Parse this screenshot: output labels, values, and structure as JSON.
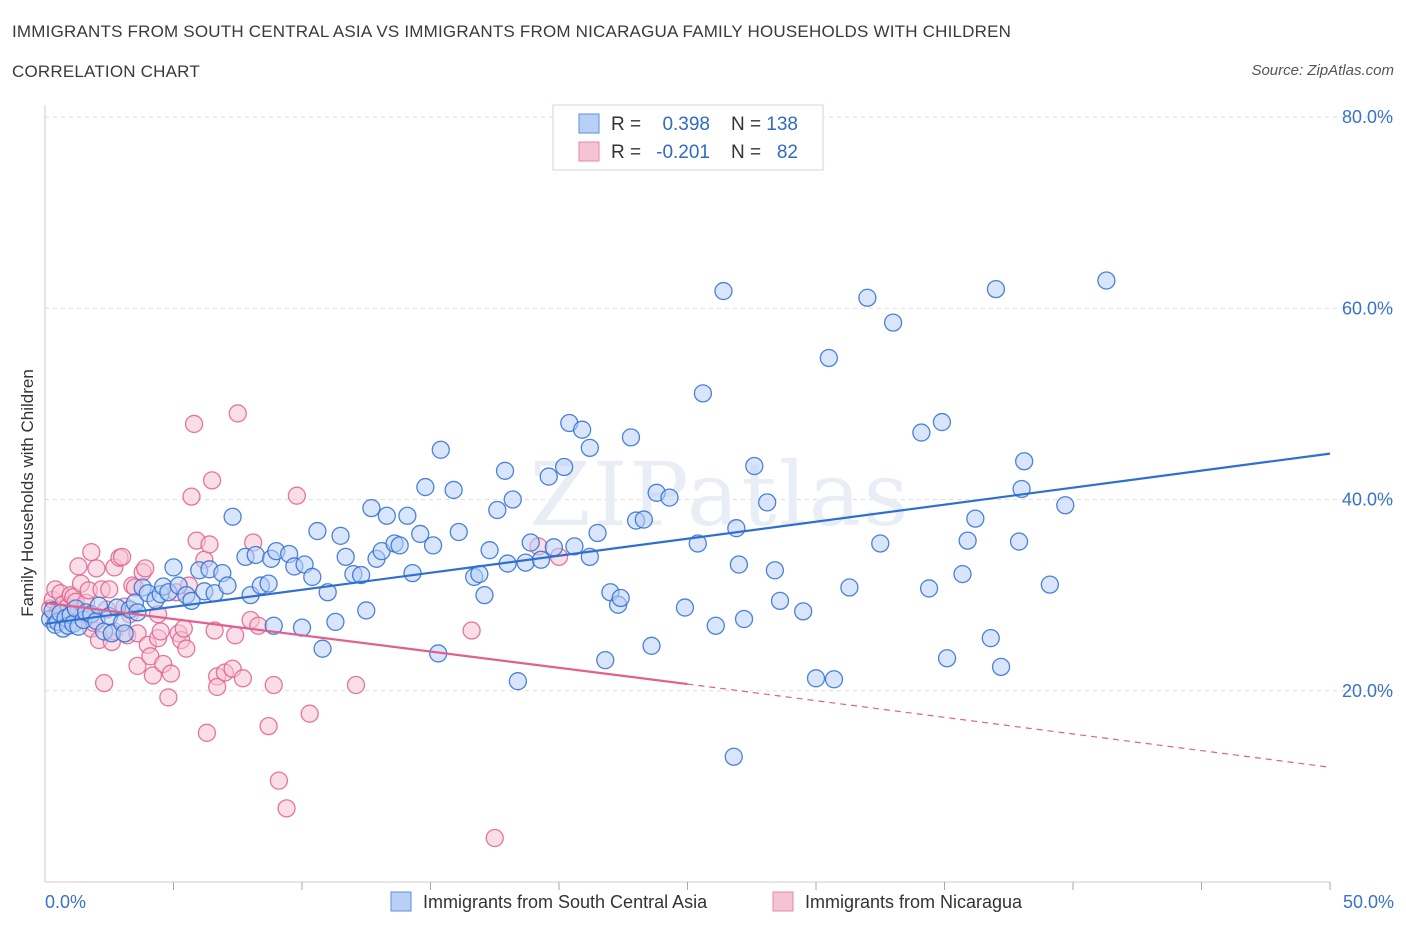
{
  "title": "IMMIGRANTS FROM SOUTH CENTRAL ASIA VS IMMIGRANTS FROM NICARAGUA FAMILY HOUSEHOLDS WITH CHILDREN",
  "subtitle": "CORRELATION CHART",
  "source": "Source: ZipAtlas.com",
  "watermark": "ZIPatlas",
  "colors": {
    "blue": "#2e6fd0",
    "blue_fill": "#b8d0f5",
    "pink": "#e0608f",
    "pink_fill": "#f6c3d4",
    "axis_text": "#3a72c8",
    "grid": "#dddddd"
  },
  "legend": {
    "rows": [
      {
        "r_label": "R =",
        "r_value": "0.398",
        "n_label": "N =",
        "n_value": "138"
      },
      {
        "r_label": "R =",
        "r_value": "-0.201",
        "n_label": "N =",
        "n_value": "82"
      }
    ]
  },
  "bottom_legend": [
    "Immigrants from South Central Asia",
    "Immigrants from Nicaragua"
  ],
  "chart_data": {
    "type": "scatter",
    "title": "IMMIGRANTS FROM SOUTH CENTRAL ASIA VS IMMIGRANTS FROM NICARAGUA FAMILY HOUSEHOLDS WITH CHILDREN",
    "xlabel": "",
    "ylabel": "Family Households with Children",
    "xlim": [
      0,
      50
    ],
    "ylim": [
      0,
      80
    ],
    "x_tick_labels": [
      "0.0%",
      "50.0%"
    ],
    "y_ticks": [
      20,
      40,
      60,
      80
    ],
    "y_tick_labels": [
      "20.0%",
      "40.0%",
      "60.0%",
      "80.0%"
    ],
    "grid": true,
    "series": [
      {
        "name": "Immigrants from South Central Asia",
        "color": "blue",
        "trend": {
          "x0": 0,
          "y0": 27.0,
          "x1": 50,
          "y1": 44.8
        },
        "points": [
          [
            0.2,
            27.5
          ],
          [
            0.3,
            28.4
          ],
          [
            0.4,
            26.9
          ],
          [
            0.5,
            27.2
          ],
          [
            0.6,
            28.1
          ],
          [
            0.7,
            26.5
          ],
          [
            0.8,
            27.6
          ],
          [
            0.9,
            26.8
          ],
          [
            1.0,
            27.9
          ],
          [
            1.1,
            27.0
          ],
          [
            1.2,
            28.6
          ],
          [
            1.3,
            26.7
          ],
          [
            1.5,
            27.4
          ],
          [
            1.6,
            28.2
          ],
          [
            1.8,
            28.0
          ],
          [
            2.0,
            27.3
          ],
          [
            2.1,
            28.9
          ],
          [
            2.3,
            26.2
          ],
          [
            2.5,
            27.8
          ],
          [
            2.6,
            26.0
          ],
          [
            2.8,
            28.7
          ],
          [
            3.0,
            27.1
          ],
          [
            3.1,
            26.0
          ],
          [
            3.3,
            28.5
          ],
          [
            3.5,
            29.2
          ],
          [
            3.6,
            28.2
          ],
          [
            3.8,
            30.8
          ],
          [
            4.0,
            30.2
          ],
          [
            4.3,
            29.5
          ],
          [
            4.5,
            30.1
          ],
          [
            4.6,
            30.9
          ],
          [
            4.8,
            30.3
          ],
          [
            5.0,
            32.9
          ],
          [
            5.2,
            31.0
          ],
          [
            5.5,
            30.0
          ],
          [
            5.7,
            29.4
          ],
          [
            6.0,
            32.6
          ],
          [
            6.2,
            30.4
          ],
          [
            6.4,
            32.7
          ],
          [
            6.6,
            30.2
          ],
          [
            6.9,
            32.3
          ],
          [
            7.1,
            31.0
          ],
          [
            7.3,
            38.2
          ],
          [
            7.8,
            34.0
          ],
          [
            8.0,
            30.0
          ],
          [
            8.2,
            34.2
          ],
          [
            8.4,
            31.0
          ],
          [
            8.7,
            31.2
          ],
          [
            8.8,
            33.8
          ],
          [
            9.0,
            34.6
          ],
          [
            8.9,
            26.8
          ],
          [
            9.5,
            34.3
          ],
          [
            9.7,
            33.0
          ],
          [
            10.0,
            26.6
          ],
          [
            10.1,
            33.2
          ],
          [
            10.4,
            31.9
          ],
          [
            10.6,
            36.7
          ],
          [
            10.8,
            24.4
          ],
          [
            11.0,
            30.3
          ],
          [
            11.3,
            27.2
          ],
          [
            11.5,
            36.2
          ],
          [
            11.7,
            34.0
          ],
          [
            12.0,
            32.2
          ],
          [
            12.3,
            32.1
          ],
          [
            12.5,
            28.4
          ],
          [
            12.7,
            39.1
          ],
          [
            12.9,
            33.8
          ],
          [
            13.1,
            34.6
          ],
          [
            13.3,
            38.3
          ],
          [
            13.6,
            35.4
          ],
          [
            13.8,
            35.2
          ],
          [
            14.1,
            38.3
          ],
          [
            14.3,
            32.3
          ],
          [
            14.8,
            41.3
          ],
          [
            14.6,
            36.4
          ],
          [
            15.1,
            35.2
          ],
          [
            15.3,
            23.9
          ],
          [
            15.4,
            45.2
          ],
          [
            15.9,
            41.0
          ],
          [
            16.1,
            36.6
          ],
          [
            16.7,
            31.9
          ],
          [
            16.9,
            32.2
          ],
          [
            17.1,
            30.0
          ],
          [
            17.3,
            34.7
          ],
          [
            17.6,
            38.9
          ],
          [
            17.9,
            43.0
          ],
          [
            18.0,
            33.3
          ],
          [
            18.2,
            40.0
          ],
          [
            18.4,
            21.0
          ],
          [
            18.7,
            33.4
          ],
          [
            18.9,
            35.5
          ],
          [
            19.3,
            33.7
          ],
          [
            19.6,
            42.4
          ],
          [
            19.8,
            35.0
          ],
          [
            20.2,
            43.4
          ],
          [
            20.4,
            48.0
          ],
          [
            20.6,
            35.1
          ],
          [
            20.9,
            47.3
          ],
          [
            21.2,
            45.4
          ],
          [
            21.2,
            34.0
          ],
          [
            21.5,
            36.5
          ],
          [
            21.8,
            23.2
          ],
          [
            22.0,
            30.3
          ],
          [
            22.3,
            29.0
          ],
          [
            22.4,
            29.7
          ],
          [
            22.8,
            46.5
          ],
          [
            23.0,
            37.8
          ],
          [
            23.3,
            37.9
          ],
          [
            23.6,
            24.7
          ],
          [
            23.8,
            40.7
          ],
          [
            24.3,
            40.2
          ],
          [
            24.9,
            28.7
          ],
          [
            25.4,
            35.4
          ],
          [
            25.6,
            51.1
          ],
          [
            26.1,
            26.8
          ],
          [
            26.4,
            61.8
          ],
          [
            26.9,
            37.0
          ],
          [
            27.0,
            33.2
          ],
          [
            27.2,
            27.5
          ],
          [
            27.6,
            43.5
          ],
          [
            28.1,
            39.7
          ],
          [
            28.4,
            32.6
          ],
          [
            28.6,
            29.4
          ],
          [
            29.5,
            28.3
          ],
          [
            30.0,
            21.3
          ],
          [
            30.5,
            54.8
          ],
          [
            30.7,
            21.2
          ],
          [
            31.3,
            30.8
          ],
          [
            32.0,
            61.1
          ],
          [
            32.5,
            35.4
          ],
          [
            33.0,
            58.5
          ],
          [
            34.1,
            47.0
          ],
          [
            34.4,
            30.7
          ],
          [
            34.9,
            48.1
          ],
          [
            35.1,
            23.4
          ],
          [
            35.7,
            32.2
          ],
          [
            35.9,
            35.7
          ],
          [
            36.2,
            38.0
          ],
          [
            36.8,
            25.5
          ],
          [
            37.0,
            62.0
          ],
          [
            37.2,
            22.5
          ],
          [
            37.9,
            35.6
          ],
          [
            38.0,
            41.1
          ],
          [
            38.1,
            44.0
          ],
          [
            39.1,
            31.1
          ],
          [
            39.7,
            39.4
          ],
          [
            41.3,
            62.9
          ],
          [
            26.8,
            13.1
          ]
        ]
      },
      {
        "name": "Immigrants from Nicaragua",
        "color": "pink",
        "trend": {
          "x0": 0,
          "y0": 29.2,
          "x1": 25,
          "y1": 20.7,
          "dash_x1": 50,
          "dash_y1": 12.0
        },
        "points": [
          [
            0.2,
            28.6
          ],
          [
            0.3,
            29.5
          ],
          [
            0.4,
            30.6
          ],
          [
            0.4,
            27.7
          ],
          [
            0.5,
            28.2
          ],
          [
            0.6,
            30.2
          ],
          [
            0.7,
            29.0
          ],
          [
            0.8,
            27.4
          ],
          [
            0.9,
            28.8
          ],
          [
            1.0,
            30.0
          ],
          [
            1.1,
            29.8
          ],
          [
            1.2,
            29.3
          ],
          [
            1.3,
            33.0
          ],
          [
            1.4,
            31.2
          ],
          [
            1.5,
            28.0
          ],
          [
            1.6,
            29.2
          ],
          [
            1.7,
            30.5
          ],
          [
            1.8,
            26.5
          ],
          [
            1.8,
            34.5
          ],
          [
            1.9,
            27.1
          ],
          [
            2.0,
            32.8
          ],
          [
            2.1,
            25.3
          ],
          [
            2.2,
            30.6
          ],
          [
            2.3,
            20.8
          ],
          [
            2.4,
            28.5
          ],
          [
            2.5,
            30.6
          ],
          [
            2.6,
            25.1
          ],
          [
            2.7,
            26.2
          ],
          [
            2.7,
            32.9
          ],
          [
            2.9,
            33.9
          ],
          [
            3.0,
            34.0
          ],
          [
            3.1,
            28.8
          ],
          [
            3.2,
            25.8
          ],
          [
            3.3,
            28.0
          ],
          [
            3.4,
            31.0
          ],
          [
            3.5,
            30.8
          ],
          [
            3.6,
            26.0
          ],
          [
            3.6,
            22.6
          ],
          [
            3.8,
            32.4
          ],
          [
            3.9,
            32.8
          ],
          [
            4.0,
            24.8
          ],
          [
            4.1,
            23.6
          ],
          [
            4.2,
            21.6
          ],
          [
            4.4,
            25.5
          ],
          [
            4.4,
            28.0
          ],
          [
            4.5,
            26.2
          ],
          [
            4.6,
            22.8
          ],
          [
            4.8,
            19.3
          ],
          [
            4.9,
            21.8
          ],
          [
            5.1,
            30.3
          ],
          [
            5.2,
            26.0
          ],
          [
            5.3,
            25.3
          ],
          [
            5.4,
            26.5
          ],
          [
            5.5,
            24.4
          ],
          [
            5.6,
            31.0
          ],
          [
            5.7,
            40.3
          ],
          [
            5.8,
            47.9
          ],
          [
            5.9,
            35.7
          ],
          [
            6.2,
            33.7
          ],
          [
            6.3,
            15.6
          ],
          [
            6.4,
            35.3
          ],
          [
            6.5,
            42.0
          ],
          [
            6.6,
            26.3
          ],
          [
            6.7,
            21.5
          ],
          [
            6.7,
            20.4
          ],
          [
            7.0,
            21.9
          ],
          [
            7.3,
            22.3
          ],
          [
            7.4,
            25.8
          ],
          [
            7.5,
            49.0
          ],
          [
            7.7,
            21.3
          ],
          [
            8.0,
            27.4
          ],
          [
            8.1,
            35.5
          ],
          [
            8.3,
            26.8
          ],
          [
            8.7,
            16.3
          ],
          [
            8.9,
            20.6
          ],
          [
            9.1,
            10.6
          ],
          [
            9.4,
            7.7
          ],
          [
            9.8,
            40.4
          ],
          [
            10.3,
            17.6
          ],
          [
            12.1,
            20.6
          ],
          [
            16.6,
            26.3
          ],
          [
            17.5,
            4.6
          ],
          [
            19.2,
            35.1
          ],
          [
            20.0,
            34.0
          ]
        ]
      }
    ]
  }
}
